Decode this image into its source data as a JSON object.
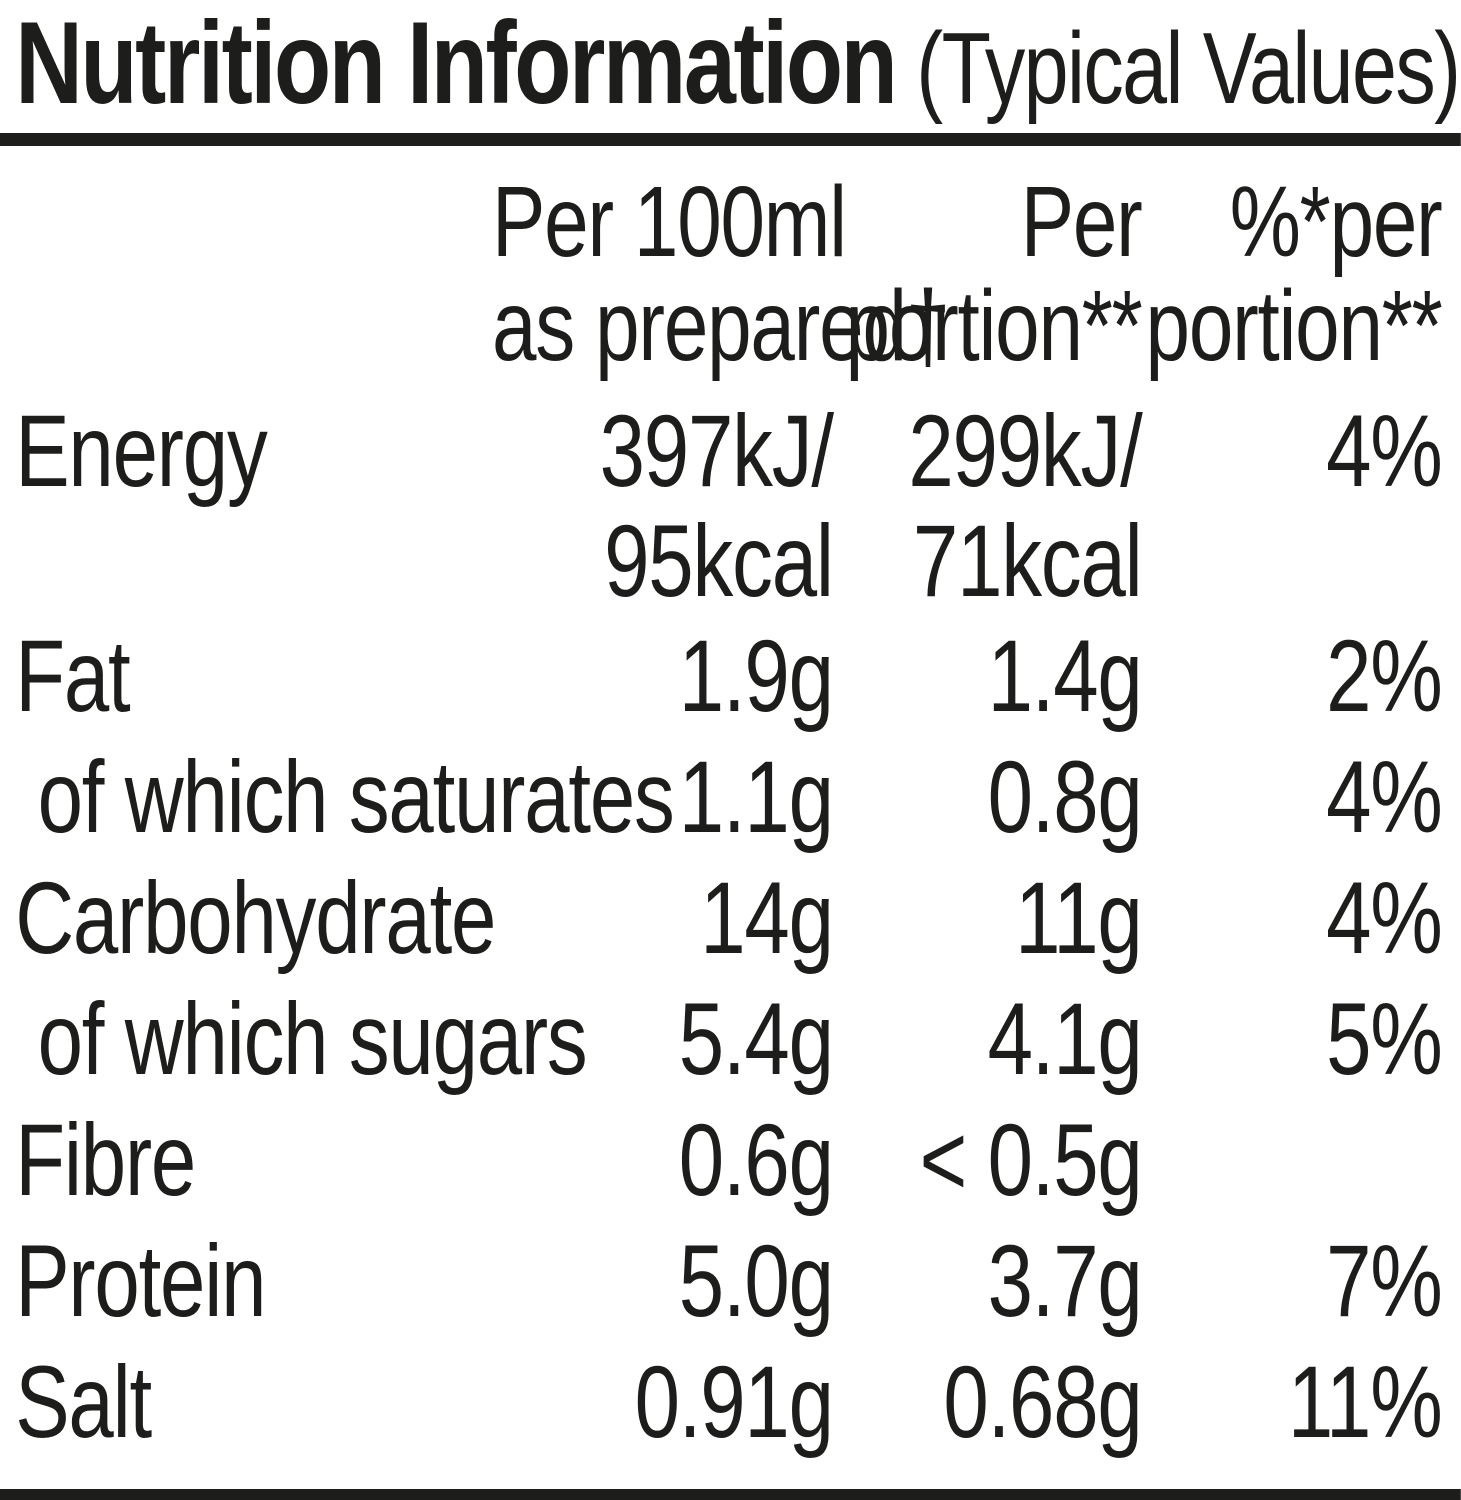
{
  "title": "Nutrition Information",
  "title_suffix": "(Typical Values)",
  "header": {
    "per100_line1": "Per 100ml",
    "per100_line2": "as prepared†",
    "portion_line1": "Per",
    "portion_line2": "portion**",
    "percent_line1": "%*per",
    "percent_line2": "portion**"
  },
  "rows": [
    {
      "label": "Energy",
      "per100_l1": "397kJ/",
      "per100_l2": "95kcal",
      "portion_l1": "299kJ/",
      "portion_l2": "71kcal",
      "percent": "4%"
    },
    {
      "label": "Fat",
      "per100": "1.9g",
      "portion": "1.4g",
      "percent": "2%"
    },
    {
      "label": "of which saturates",
      "per100": "1.1g",
      "portion": "0.8g",
      "percent": "4%"
    },
    {
      "label": "Carbohydrate",
      "per100": "14g",
      "portion": "11g",
      "percent": "4%"
    },
    {
      "label": "of which sugars",
      "per100": "5.4g",
      "portion": "4.1g",
      "percent": "5%"
    },
    {
      "label": "Fibre",
      "per100": "0.6g",
      "portion": "< 0.5g",
      "percent": ""
    },
    {
      "label": "Protein",
      "per100": "5.0g",
      "portion": "3.7g",
      "percent": "7%"
    },
    {
      "label": "Salt",
      "per100": "0.91g",
      "portion": "0.68g",
      "percent": "11%"
    }
  ],
  "colors": {
    "text": "#1d1d1b",
    "rule": "#1d1d1b",
    "background": "#ffffff"
  }
}
